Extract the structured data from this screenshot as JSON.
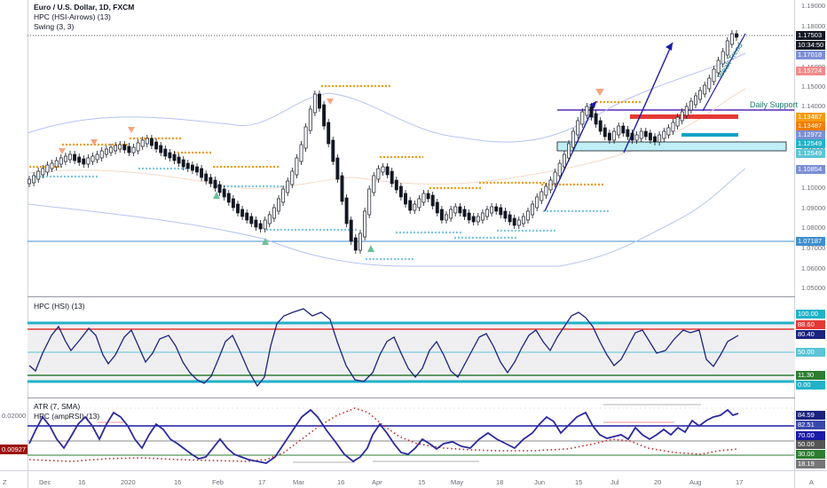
{
  "header": {
    "symbol_line": "Euro / U.S. Dollar, 1D, FXCM",
    "indicator1": "HPC (HSI-Arrows) (13)",
    "indicator2": "Swing (3, 3)"
  },
  "annotations": {
    "daily_support": "Daily Support",
    "weak_trend": "Weak Trend"
  },
  "price_axis": {
    "ticks": [
      "1.19000",
      "1.18000",
      "1.17000",
      "1.16000",
      "1.15000",
      "1.14000",
      "1.13000",
      "1.12000",
      "1.11000",
      "1.10000",
      "1.09000",
      "1.08000",
      "1.07000",
      "1.06000",
      "1.05000"
    ],
    "tags": [
      {
        "text": "1.17503",
        "color": "#131722"
      },
      {
        "text": "10:34:50",
        "color": "#131722"
      },
      {
        "text": "1.17018",
        "color": "#7b8fd6"
      },
      {
        "text": "1.15724",
        "color": "#f28a8a"
      },
      {
        "text": "1.13487",
        "color": "#f39c12"
      },
      {
        "text": "1.13487",
        "color": "#f57c00"
      },
      {
        "text": "1.12972",
        "color": "#7b8fd6"
      },
      {
        "text": "1.12549",
        "color": "#22b2c8"
      },
      {
        "text": "1.12549",
        "color": "#5bc4d6"
      },
      {
        "text": "1.10854",
        "color": "#7b8fd6"
      },
      {
        "text": "1.07187",
        "color": "#3e8ed0"
      }
    ]
  },
  "hsi_pane": {
    "title": "HPC (HSI) (13)",
    "tags": [
      {
        "text": "100.00",
        "color": "#22b2c8"
      },
      {
        "text": "88.60",
        "color": "#e53935"
      },
      {
        "text": "80.40",
        "color": "#1a237e"
      },
      {
        "text": "50.00",
        "color": "#5bc4d6"
      },
      {
        "text": "11.30",
        "color": "#2e7d32"
      },
      {
        "text": "0.00",
        "color": "#22b2c8"
      }
    ]
  },
  "atr_pane": {
    "title1": "ATR (7, SMA)",
    "title2": "HPC (ampRSI) (13)",
    "left_value": "0.00927",
    "left_tick": "0.02000",
    "tags": [
      {
        "text": "84.59",
        "color": "#1a237e"
      },
      {
        "text": "82.51",
        "color": "#3949ab"
      },
      {
        "text": "70.00",
        "color": "#1a1aa6"
      },
      {
        "text": "50.00",
        "color": "#555555"
      },
      {
        "text": "30.00",
        "color": "#2e7d32"
      },
      {
        "text": "18.19",
        "color": "#777777"
      }
    ]
  },
  "time_axis": {
    "labels": [
      "Dec",
      "16",
      "2020",
      "16",
      "Feb",
      "17",
      "Mar",
      "16",
      "Apr",
      "15",
      "May",
      "18",
      "Jun",
      "15",
      "Jul",
      "20",
      "Aug",
      "17"
    ],
    "corner_left": "Z",
    "corner_right": "A"
  },
  "colors": {
    "candle": "#131722",
    "resistance": "#f39c12",
    "support": "#7ec8e3",
    "bands": "#a9b9f0",
    "trend": "#1a1aa6"
  }
}
